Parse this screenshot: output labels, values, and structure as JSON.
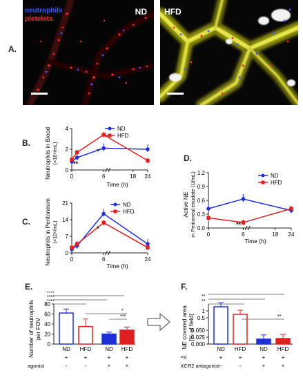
{
  "panelA": {
    "letter": "A.",
    "legend_neutrophils": "neutrophils",
    "legend_platelets": "pletelets",
    "left_label": "ND",
    "right_label": "HFD",
    "colors": {
      "neutrophils": "#3a4dff",
      "platelets": "#ff2a2a",
      "merge": "#f3f36a"
    }
  },
  "panelB": {
    "letter": "B.",
    "ylabel": "Neutrophils in Blood",
    "yunit": "(×10⁶/mL)",
    "xlabel": "Time (h)",
    "legend": [
      "ND",
      "HFD"
    ],
    "annotations": [
      "**",
      "*"
    ],
    "chart_data": {
      "type": "line",
      "x": [
        0,
        1,
        6,
        24
      ],
      "xticks": [
        "0",
        "6",
        "18",
        "24"
      ],
      "yticks": [
        "0",
        "2",
        "4"
      ],
      "ylim": [
        0,
        4
      ],
      "series": [
        {
          "name": "ND",
          "color": "#1f2fd6",
          "values": [
            0.8,
            1.2,
            2.1,
            2.0
          ]
        },
        {
          "name": "HFD",
          "color": "#e02020",
          "values": [
            1.0,
            1.7,
            3.4,
            0.9
          ]
        }
      ]
    }
  },
  "panelC": {
    "letter": "C.",
    "ylabel": "Neutrophils in Peritoneum",
    "yunit": "(×10⁶/mL)",
    "xlabel": "Time (h)",
    "legend": [
      "ND",
      "HFD"
    ],
    "annotations": [
      "*"
    ],
    "chart_data": {
      "type": "line",
      "x": [
        0,
        1,
        6,
        24
      ],
      "xticks": [
        "0",
        "6",
        "24"
      ],
      "yticks": [
        "0",
        "7",
        "14",
        "21"
      ],
      "ylim": [
        0,
        28
      ],
      "series": [
        {
          "name": "ND",
          "color": "#1f2fd6",
          "values": [
            2,
            4,
            22,
            5
          ]
        },
        {
          "name": "HFD",
          "color": "#e02020",
          "values": [
            3,
            5,
            17,
            3
          ]
        }
      ]
    }
  },
  "panelD": {
    "letter": "D.",
    "ylabel": "Active NE",
    "ylabel2": "in Peritoneal exudate (U/mL)",
    "xlabel": "Time (h)",
    "legend": [
      "ND",
      "HFD"
    ],
    "annotations": [
      "**"
    ],
    "chart_data": {
      "type": "line",
      "x": [
        0,
        6,
        24
      ],
      "xticks": [
        "0",
        "6",
        "18",
        "24"
      ],
      "yticks": [
        "0.0",
        "0.3",
        "0.6",
        "0.9",
        "1.2"
      ],
      "ylim": [
        0,
        1.2
      ],
      "series": [
        {
          "name": "ND",
          "color": "#1f2fd6",
          "values": [
            0.42,
            0.63,
            0.38
          ]
        },
        {
          "name": "HFD",
          "color": "#e02020",
          "values": [
            0.22,
            0.12,
            0.42
          ]
        }
      ]
    }
  },
  "panelE": {
    "letter": "E.",
    "ylabel": "Number of neutrophils",
    "ylabel2": "per FOV",
    "sig": [
      "****",
      "****",
      "****",
      "*",
      "***"
    ],
    "categories": [
      "ND",
      "HFD",
      "ND",
      "HFD"
    ],
    "lps_label": "LPS",
    "lps_marks": [
      "+",
      "+",
      "+",
      "+"
    ],
    "cxcr2_label": "CXCR2 antagonist",
    "cxcr2_marks": [
      "-",
      "-",
      "+",
      "+"
    ],
    "chart_data": {
      "type": "bar",
      "categories": [
        "ND",
        "HFD",
        "ND",
        "HFD"
      ],
      "values": [
        62,
        35,
        20,
        28
      ],
      "errors": [
        8,
        15,
        4,
        6
      ],
      "yticks": [
        "0",
        "20",
        "40",
        "60",
        "80"
      ],
      "ylim": [
        0,
        80
      ],
      "filled": [
        false,
        false,
        true,
        true
      ],
      "colors": [
        "#1f2fd6",
        "#e02020",
        "#1f2fd6",
        "#e02020"
      ]
    }
  },
  "panelF": {
    "letter": "F.",
    "ylabel": "NE covered area",
    "ylabel2": "[% of field]",
    "sig": [
      "****",
      "**",
      "**",
      "**"
    ],
    "categories": [
      "ND",
      "HFD",
      "ND",
      "HFD"
    ],
    "lps_label": "LPS",
    "lps_marks": [
      "+",
      "+",
      "+",
      "+"
    ],
    "cxcr2_label": "CXCR2 antagonist",
    "cxcr2_marks": [
      "-",
      "-",
      "+",
      "+"
    ],
    "chart_data": {
      "type": "bar",
      "categories": [
        "ND",
        "HFD",
        "ND",
        "HFD"
      ],
      "values": [
        1.3,
        0.75,
        0.018,
        0.02
      ],
      "yticks": [
        "0.000",
        "0.025",
        "0.050",
        "0.5",
        "1"
      ],
      "colors": [
        "#1f2fd6",
        "#e02020",
        "#1f2fd6",
        "#e02020"
      ],
      "filled": [
        false,
        false,
        true,
        true
      ]
    }
  }
}
